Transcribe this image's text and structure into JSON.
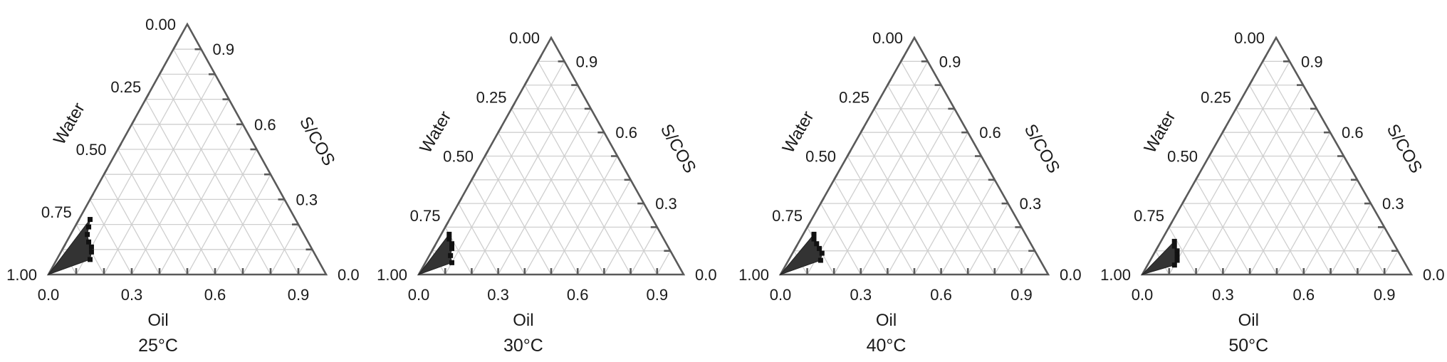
{
  "chart_data": [
    {
      "type": "ternary",
      "temperature_label": "25°C",
      "axes": {
        "bottom": "Oil",
        "left": "Water",
        "right": "S/COS"
      },
      "ticks": {
        "bottom": [
          "0.0",
          "0.3",
          "0.6",
          "0.9"
        ],
        "left": [
          "0.00",
          "0.25",
          "0.50",
          "0.75",
          "1.00"
        ],
        "right": [
          "0.9",
          "0.6",
          "0.3",
          "0.0"
        ]
      },
      "region_boundary": [
        {
          "oil": 0.0,
          "water": 1.0,
          "scos": 0.0
        },
        {
          "oil": 0.04,
          "water": 0.74,
          "scos": 0.22
        },
        {
          "oil": 0.05,
          "water": 0.76,
          "scos": 0.19
        },
        {
          "oil": 0.06,
          "water": 0.78,
          "scos": 0.16
        },
        {
          "oil": 0.08,
          "water": 0.79,
          "scos": 0.13
        },
        {
          "oil": 0.1,
          "water": 0.79,
          "scos": 0.11
        },
        {
          "oil": 0.11,
          "water": 0.8,
          "scos": 0.09
        },
        {
          "oil": 0.12,
          "water": 0.82,
          "scos": 0.06
        }
      ]
    },
    {
      "type": "ternary",
      "temperature_label": "30°C",
      "axes": {
        "bottom": "Oil",
        "left": "Water",
        "right": "S/COS"
      },
      "ticks": {
        "bottom": [
          "0.0",
          "0.3",
          "0.6",
          "0.9"
        ],
        "left": [
          "0.00",
          "0.25",
          "0.50",
          "0.75",
          "1.00"
        ],
        "right": [
          "0.9",
          "0.6",
          "0.3",
          "0.0"
        ]
      },
      "region_boundary": [
        {
          "oil": 0.0,
          "water": 1.0,
          "scos": 0.0
        },
        {
          "oil": 0.03,
          "water": 0.8,
          "scos": 0.17
        },
        {
          "oil": 0.04,
          "water": 0.81,
          "scos": 0.15
        },
        {
          "oil": 0.06,
          "water": 0.81,
          "scos": 0.13
        },
        {
          "oil": 0.07,
          "water": 0.82,
          "scos": 0.11
        },
        {
          "oil": 0.08,
          "water": 0.84,
          "scos": 0.08
        },
        {
          "oil": 0.1,
          "water": 0.85,
          "scos": 0.05
        }
      ]
    },
    {
      "type": "ternary",
      "temperature_label": "40°C",
      "axes": {
        "bottom": "Oil",
        "left": "Water",
        "right": "S/COS"
      },
      "ticks": {
        "bottom": [
          "0.0",
          "0.3",
          "0.6",
          "0.9"
        ],
        "left": [
          "0.00",
          "0.25",
          "0.50",
          "0.75",
          "1.00"
        ],
        "right": [
          "0.9",
          "0.6",
          "0.3",
          "0.0"
        ]
      },
      "region_boundary": [
        {
          "oil": 0.0,
          "water": 1.0,
          "scos": 0.0
        },
        {
          "oil": 0.04,
          "water": 0.79,
          "scos": 0.17
        },
        {
          "oil": 0.05,
          "water": 0.8,
          "scos": 0.15
        },
        {
          "oil": 0.07,
          "water": 0.8,
          "scos": 0.13
        },
        {
          "oil": 0.09,
          "water": 0.8,
          "scos": 0.11
        },
        {
          "oil": 0.11,
          "water": 0.8,
          "scos": 0.09
        },
        {
          "oil": 0.12,
          "water": 0.82,
          "scos": 0.06
        }
      ]
    },
    {
      "type": "ternary",
      "temperature_label": "50°C",
      "axes": {
        "bottom": "Oil",
        "left": "Water",
        "right": "S/COS"
      },
      "ticks": {
        "bottom": [
          "0.0",
          "0.3",
          "0.6",
          "0.9"
        ],
        "left": [
          "0.00",
          "0.25",
          "0.50",
          "0.75",
          "1.00"
        ],
        "right": [
          "0.9",
          "0.6",
          "0.3",
          "0.0"
        ]
      },
      "region_boundary": [
        {
          "oil": 0.0,
          "water": 1.0,
          "scos": 0.0
        },
        {
          "oil": 0.05,
          "water": 0.81,
          "scos": 0.14
        },
        {
          "oil": 0.06,
          "water": 0.82,
          "scos": 0.12
        },
        {
          "oil": 0.08,
          "water": 0.82,
          "scos": 0.1
        },
        {
          "oil": 0.09,
          "water": 0.83,
          "scos": 0.08
        },
        {
          "oil": 0.1,
          "water": 0.84,
          "scos": 0.06
        },
        {
          "oil": 0.1,
          "water": 0.86,
          "scos": 0.04
        }
      ]
    }
  ]
}
